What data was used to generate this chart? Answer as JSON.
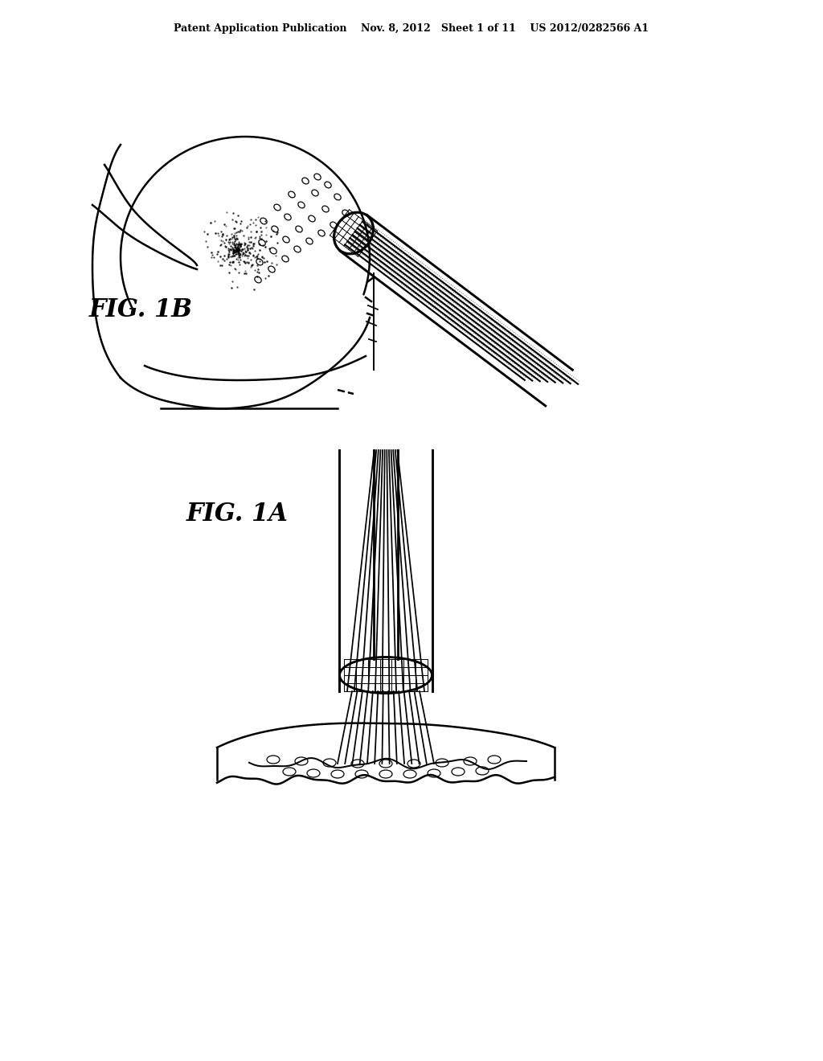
{
  "bg_color": "#ffffff",
  "header_text": "Patent Application Publication    Nov. 8, 2012   Sheet 1 of 11    US 2012/0282566 A1",
  "fig1a_label": "FIG. 1A",
  "fig1b_label": "FIG. 1B",
  "line_color": "#000000",
  "line_width": 1.8
}
